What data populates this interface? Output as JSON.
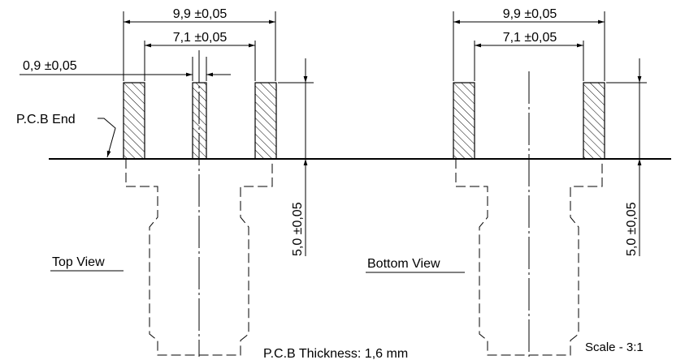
{
  "drawing": {
    "top_view": {
      "title": "Top View",
      "dim_outer": "9,9 ±0,05",
      "dim_inner": "7,1 ±0,05",
      "dim_pad_width": "0,9 ±0,05",
      "dim_height": "5,0 ±0,05",
      "pcb_end_label": "P.C.B End"
    },
    "bottom_view": {
      "title": "Bottom View",
      "dim_outer": "9,9 ±0,05",
      "dim_inner": "7,1 ±0,05",
      "dim_height": "5,0 ±0,05"
    },
    "pcb_thickness": "P.C.B Thickness: 1,6 mm",
    "scale": "Scale - 3:1"
  }
}
